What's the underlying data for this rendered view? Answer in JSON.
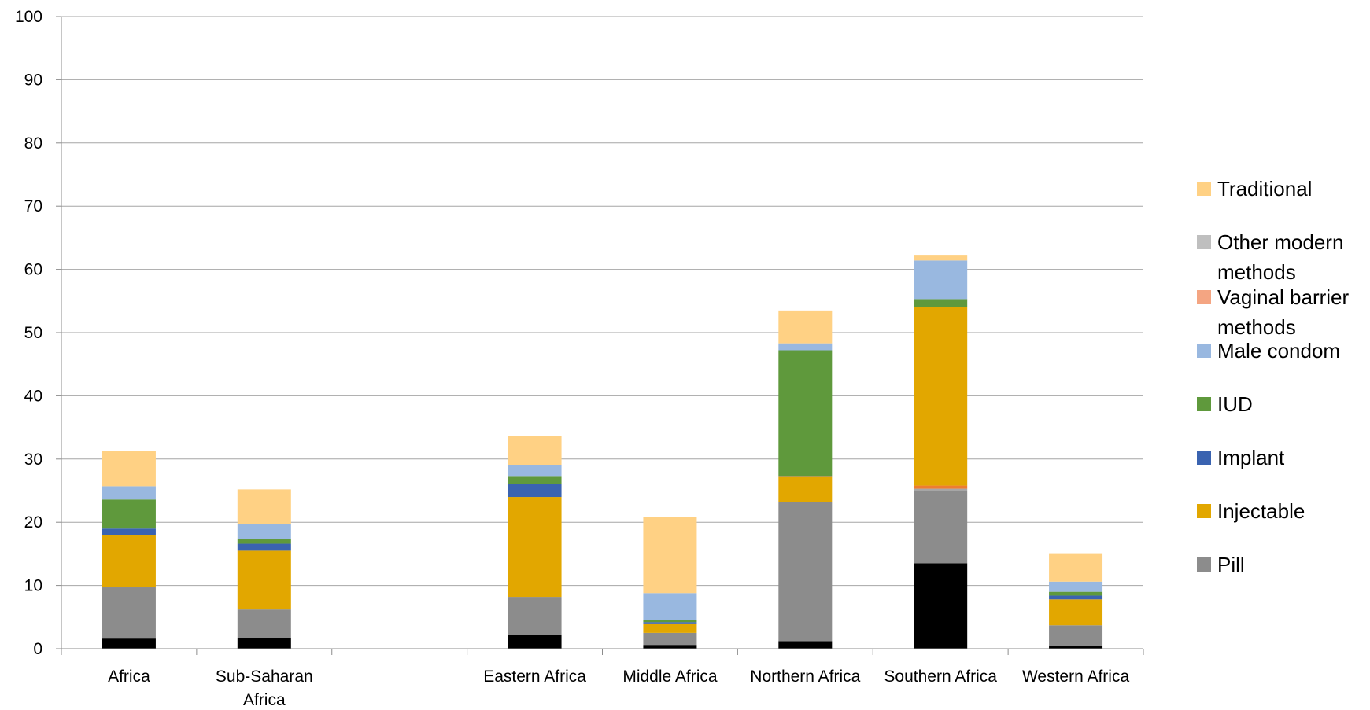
{
  "chart_data": {
    "type": "bar",
    "stacked": true,
    "ylim": [
      0,
      100
    ],
    "yticks": [
      0,
      10,
      20,
      30,
      40,
      50,
      60,
      70,
      80,
      90,
      100
    ],
    "grid": true,
    "legend_position": "right",
    "categories": [
      [
        "Africa"
      ],
      [
        "Sub-Saharan",
        "Africa"
      ],
      [
        ""
      ],
      [
        "Eastern Africa"
      ],
      [
        "Middle Africa"
      ],
      [
        "Northern Africa"
      ],
      [
        "Southern Africa"
      ],
      [
        "Western Africa"
      ]
    ],
    "series": [
      {
        "key": "sterilization",
        "color": "#000000",
        "values": [
          1.6,
          1.7,
          0,
          2.2,
          0.6,
          1.2,
          13.5,
          0.4
        ]
      },
      {
        "name": "Pill",
        "key": "pill",
        "color": "#8c8c8c",
        "values": [
          8.1,
          4.5,
          0,
          6.0,
          1.9,
          22.0,
          11.5,
          3.3
        ]
      },
      {
        "key": "other_modern_hidden",
        "color": "#a6a6a6",
        "values": [
          0,
          0,
          0,
          0,
          0,
          0,
          0.3,
          0
        ]
      },
      {
        "name": "Vaginal barrier methods",
        "key": "vaginal",
        "color": "#ed7d31",
        "values": [
          0,
          0,
          0,
          0,
          0,
          0,
          0.5,
          0
        ]
      },
      {
        "name": "Injectable",
        "key": "injectable",
        "color": "#e2a700",
        "values": [
          8.3,
          9.3,
          0,
          15.8,
          1.5,
          4.0,
          28.3,
          4.1
        ]
      },
      {
        "name": "Implant",
        "key": "implant",
        "color": "#3a63b0",
        "values": [
          1.0,
          1.1,
          0,
          2.1,
          0.2,
          0.1,
          0,
          0.6
        ]
      },
      {
        "name": "IUD",
        "key": "iud",
        "color": "#5f993c",
        "values": [
          4.6,
          0.7,
          0,
          1.1,
          0.3,
          19.9,
          1.2,
          0.6
        ]
      },
      {
        "name": "Male condom",
        "key": "condom",
        "color": "#99b8e0",
        "values": [
          2.1,
          2.4,
          0,
          1.9,
          4.3,
          1.1,
          6.1,
          1.6
        ]
      },
      {
        "name": "Traditional",
        "key": "traditional",
        "color": "#ffd184",
        "values": [
          5.6,
          5.5,
          0,
          4.6,
          12.0,
          5.2,
          0.9,
          4.5
        ]
      }
    ],
    "legend": [
      {
        "key": "traditional",
        "lines": [
          "Traditional"
        ],
        "color": "#ffd184"
      },
      {
        "key": "other_modern",
        "lines": [
          "Other modern",
          "methods"
        ],
        "color": "#bfbfbf"
      },
      {
        "key": "vaginal",
        "lines": [
          "Vaginal barrier",
          "methods"
        ],
        "color": "#f4a582"
      },
      {
        "key": "condom",
        "lines": [
          "Male condom"
        ],
        "color": "#99b8e0"
      },
      {
        "key": "iud",
        "lines": [
          "IUD"
        ],
        "color": "#5f993c"
      },
      {
        "key": "implant",
        "lines": [
          "Implant"
        ],
        "color": "#3a63b0"
      },
      {
        "key": "injectable",
        "lines": [
          "Injectable"
        ],
        "color": "#e2a700"
      },
      {
        "key": "pill",
        "lines": [
          "Pill"
        ],
        "color": "#8c8c8c"
      }
    ]
  }
}
